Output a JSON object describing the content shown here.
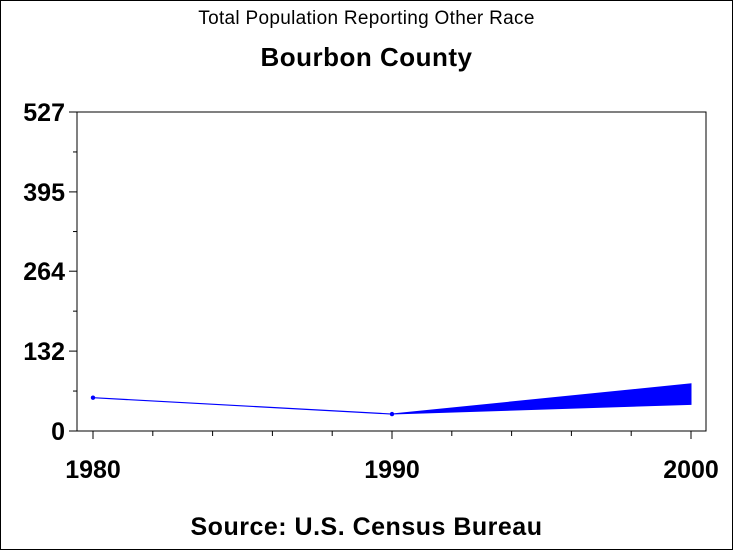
{
  "chart_data": {
    "type": "line",
    "title": "Total Population Reporting Other Race",
    "subtitle": "Bourbon County",
    "footnote": "Source: U.S. Census Bureau",
    "x": [
      1980,
      1990,
      2000
    ],
    "xlim": [
      1980,
      2000
    ],
    "ylim": [
      0,
      527
    ],
    "yticks": [
      0,
      132,
      264,
      395,
      527
    ],
    "xticks": [
      1980,
      1990,
      2000
    ],
    "series": [
      {
        "values": [
          55,
          28,
          null
        ],
        "color": "#0000ff"
      }
    ],
    "range_band": {
      "x": [
        1990,
        2000
      ],
      "lower": [
        28,
        44
      ],
      "upper": [
        28,
        78
      ],
      "color": "#0000ff"
    },
    "grid": false,
    "legend": "none"
  }
}
